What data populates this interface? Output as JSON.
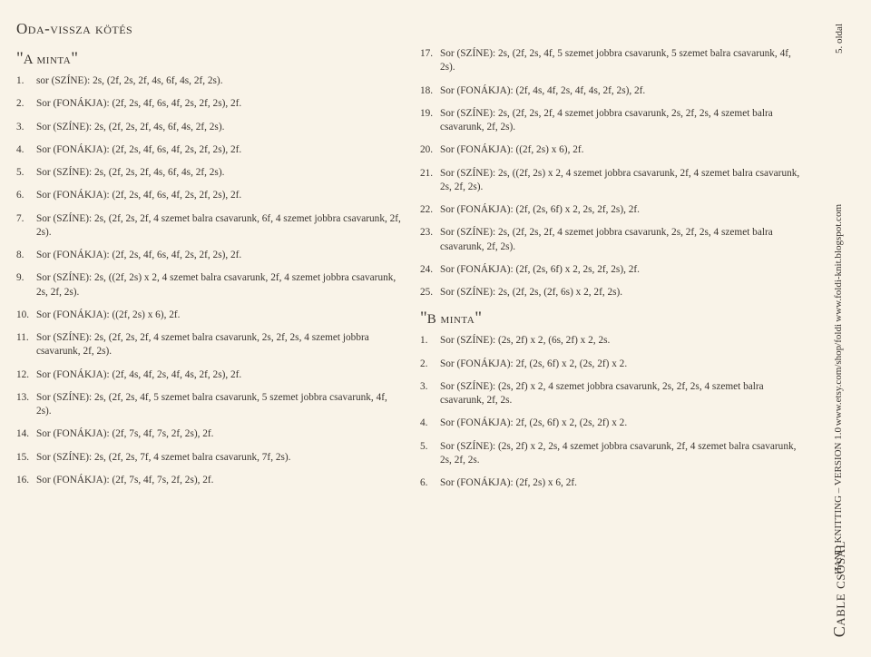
{
  "background_color": "#f9f3e8",
  "text_color": "#3a3530",
  "page_number": "5. oldal",
  "website1": "www.foldi-knit.blogspot.com",
  "website2": "www.etsy.com/shop/foldi",
  "version_line": "HAND KNITTING – VERSION 1.0",
  "footer_title": "Cable csősál",
  "main_title": "Oda-vissza kötés",
  "section_a_title": "A minta",
  "section_b_title": "B minta",
  "section_a": [
    "sor (SZÍNE): 2s, (2f, 2s, 2f, 4s, 6f, 4s, 2f, 2s).",
    "Sor (FONÁKJA): (2f, 2s, 4f, 6s, 4f, 2s, 2f, 2s), 2f.",
    "Sor (SZÍNE): 2s, (2f, 2s, 2f, 4s, 6f, 4s, 2f, 2s).",
    "Sor (FONÁKJA): (2f, 2s, 4f, 6s, 4f, 2s, 2f, 2s), 2f.",
    "Sor (SZÍNE): 2s, (2f, 2s, 2f, 4s, 6f, 4s, 2f, 2s).",
    "Sor (FONÁKJA): (2f, 2s, 4f, 6s, 4f, 2s, 2f, 2s), 2f.",
    "Sor (SZÍNE): 2s, (2f, 2s, 2f, 4 szemet balra csavarunk, 6f, 4 szemet jobbra csavarunk, 2f, 2s).",
    "Sor (FONÁKJA): (2f, 2s, 4f, 6s, 4f, 2s, 2f, 2s), 2f.",
    "Sor (SZÍNE): 2s, ((2f, 2s) x 2, 4 szemet balra csavarunk, 2f, 4 szemet jobbra csavarunk, 2s, 2f, 2s).",
    "Sor (FONÁKJA): ((2f, 2s) x 6), 2f.",
    "Sor (SZÍNE): 2s, (2f, 2s, 2f, 4 szemet balra csavarunk, 2s, 2f, 2s, 4 szemet jobbra csavarunk, 2f, 2s).",
    "Sor (FONÁKJA): (2f, 4s, 4f, 2s, 4f, 4s, 2f, 2s), 2f.",
    "Sor (SZÍNE): 2s, (2f, 2s, 4f, 5 szemet balra csavarunk, 5 szemet jobbra csavarunk, 4f, 2s).",
    "Sor (FONÁKJA): (2f, 7s, 4f, 7s, 2f, 2s), 2f.",
    "Sor (SZÍNE): 2s, (2f, 2s, 7f, 4 szemet balra csavarunk, 7f, 2s).",
    "Sor (FONÁKJA): (2f, 7s, 4f, 7s, 2f, 2s), 2f.",
    "Sor (SZÍNE): 2s, (2f, 2s, 4f, 5 szemet jobbra csavarunk, 5 szemet balra csavarunk, 4f, 2s).",
    "Sor (FONÁKJA): (2f, 4s, 4f, 2s, 4f, 4s, 2f, 2s), 2f.",
    "Sor (SZÍNE): 2s, (2f, 2s, 2f, 4 szemet jobbra csavarunk, 2s, 2f, 2s, 4 szemet balra csavarunk, 2f, 2s).",
    "Sor (FONÁKJA): ((2f, 2s) x 6), 2f.",
    "Sor (SZÍNE): 2s, ((2f, 2s) x 2, 4 szemet jobbra csavarunk, 2f, 4 szemet balra csavarunk, 2s, 2f, 2s).",
    "Sor (FONÁKJA): (2f, (2s, 6f) x 2, 2s, 2f, 2s), 2f.",
    "Sor (SZÍNE): 2s, (2f, 2s, 2f, 4 szemet jobbra csavarunk, 2s, 2f, 2s, 4 szemet balra csavarunk, 2f, 2s).",
    "Sor (FONÁKJA): (2f, (2s, 6f) x 2, 2s, 2f, 2s), 2f.",
    "Sor (SZÍNE): 2s, (2f, 2s, (2f, 6s) x 2, 2f, 2s)."
  ],
  "section_b": [
    "Sor (SZÍNE): (2s, 2f) x 2, (6s, 2f) x 2, 2s.",
    "Sor (FONÁKJA): 2f, (2s, 6f) x 2, (2s, 2f) x 2.",
    "Sor (SZÍNE): (2s, 2f) x 2, 4 szemet jobbra csavarunk, 2s, 2f, 2s, 4 szemet balra csavarunk, 2f, 2s.",
    "Sor (FONÁKJA): 2f, (2s, 6f) x 2, (2s, 2f) x 2.",
    "Sor (SZÍNE): (2s, 2f) x 2, 2s, 4 szemet jobbra csavarunk, 2f, 4 szemet balra csavarunk, 2s, 2f, 2s.",
    "Sor (FONÁKJA): (2f, 2s) x 6, 2f."
  ],
  "left_count": 16
}
